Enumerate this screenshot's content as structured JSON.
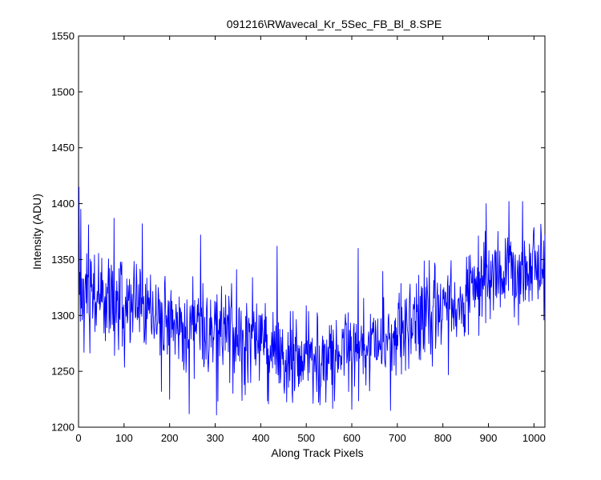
{
  "window": {
    "title": "091216\\RWavecal_Kr_5Sec_FB_Bl_8.SPE"
  },
  "chart_data": {
    "type": "line",
    "title": "091216\\RWavecal_Kr_5Sec_FB_Bl_8.SPE",
    "xlabel": "Along Track Pixels",
    "ylabel": "Intensity (ADU)",
    "xlim": [
      0,
      1024
    ],
    "ylim": [
      1200,
      1550
    ],
    "xticks": [
      0,
      100,
      200,
      300,
      400,
      500,
      600,
      700,
      800,
      900,
      1000
    ],
    "yticks": [
      1200,
      1250,
      1300,
      1350,
      1400,
      1450,
      1500,
      1550
    ],
    "grid": false,
    "box": true,
    "legend": "none",
    "series": [
      {
        "color": "#0000ff",
        "x_start": 1,
        "x_step": 1,
        "trend": {
          "x": [
            0,
            20,
            60,
            100,
            140,
            180,
            220,
            260,
            300,
            340,
            380,
            420,
            460,
            500,
            540,
            580,
            620,
            660,
            700,
            740,
            780,
            820,
            860,
            900,
            940,
            980,
            1024
          ],
          "y": [
            1318,
            1318,
            1315,
            1312,
            1305,
            1298,
            1292,
            1289,
            1286,
            1282,
            1278,
            1272,
            1266,
            1262,
            1262,
            1265,
            1270,
            1276,
            1283,
            1292,
            1300,
            1310,
            1320,
            1330,
            1336,
            1340,
            1342
          ]
        },
        "noise_amplitude": 28,
        "features": [
          {
            "x": 1,
            "y": 1415
          },
          {
            "x": 5,
            "y": 1395
          },
          {
            "x": 12,
            "y": 1267
          },
          {
            "x": 22,
            "y": 1381
          },
          {
            "x": 78,
            "y": 1387
          },
          {
            "x": 140,
            "y": 1382
          },
          {
            "x": 182,
            "y": 1232
          },
          {
            "x": 200,
            "y": 1225
          },
          {
            "x": 243,
            "y": 1212
          },
          {
            "x": 268,
            "y": 1372
          },
          {
            "x": 303,
            "y": 1211
          },
          {
            "x": 436,
            "y": 1362
          },
          {
            "x": 470,
            "y": 1222
          },
          {
            "x": 530,
            "y": 1220
          },
          {
            "x": 600,
            "y": 1216
          },
          {
            "x": 614,
            "y": 1360
          },
          {
            "x": 685,
            "y": 1215
          },
          {
            "x": 895,
            "y": 1400
          },
          {
            "x": 945,
            "y": 1402
          },
          {
            "x": 975,
            "y": 1402
          },
          {
            "x": 1022,
            "y": 1296
          }
        ]
      }
    ]
  }
}
